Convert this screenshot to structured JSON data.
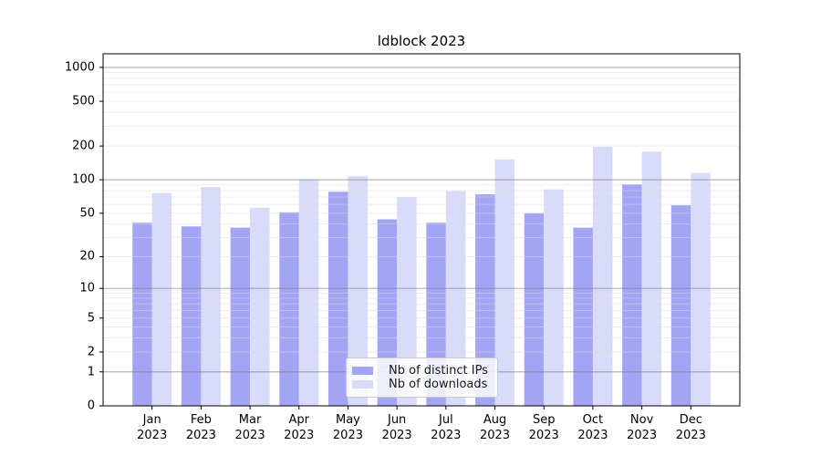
{
  "title": "ldblock 2023",
  "legend": {
    "items": [
      {
        "label": "Nb of distinct IPs",
        "color": "#a3a5f4"
      },
      {
        "label": "Nb of downloads",
        "color": "#d9dbfa"
      }
    ]
  },
  "axes": {
    "y_tick_labels": [
      "0",
      "1",
      "2",
      "5",
      "10",
      "20",
      "50",
      "100",
      "200",
      "500",
      "1000"
    ],
    "x_tick_labels_line1": [
      "Jan",
      "Feb",
      "Mar",
      "Apr",
      "May",
      "Jun",
      "Jul",
      "Aug",
      "Sep",
      "Oct",
      "Nov",
      "Dec"
    ],
    "x_tick_labels_line2": "2023"
  },
  "chart_data": {
    "type": "bar",
    "title": "ldblock 2023",
    "categories": [
      "Jan 2023",
      "Feb 2023",
      "Mar 2023",
      "Apr 2023",
      "May 2023",
      "Jun 2023",
      "Jul 2023",
      "Aug 2023",
      "Sep 2023",
      "Oct 2023",
      "Nov 2023",
      "Dec 2023"
    ],
    "series": [
      {
        "name": "Nb of distinct IPs",
        "color": "#a3a5f4",
        "values": [
          41,
          38,
          37,
          51,
          78,
          44,
          41,
          74,
          50,
          37,
          91,
          59
        ]
      },
      {
        "name": "Nb of downloads",
        "color": "#d9dbfa",
        "values": [
          76,
          86,
          56,
          100,
          108,
          70,
          79,
          152,
          82,
          197,
          178,
          115
        ]
      }
    ],
    "xlabel": "",
    "ylabel": "",
    "yscale": "log1p",
    "ylim": [
      0,
      1320
    ],
    "y_ticks": [
      0,
      1,
      2,
      5,
      10,
      20,
      50,
      100,
      200,
      500,
      1000
    ],
    "grid": true,
    "grid_major_color": "#7a7a7a",
    "grid_minor_color": "#d9d9d9",
    "legend_position": "lower center"
  }
}
